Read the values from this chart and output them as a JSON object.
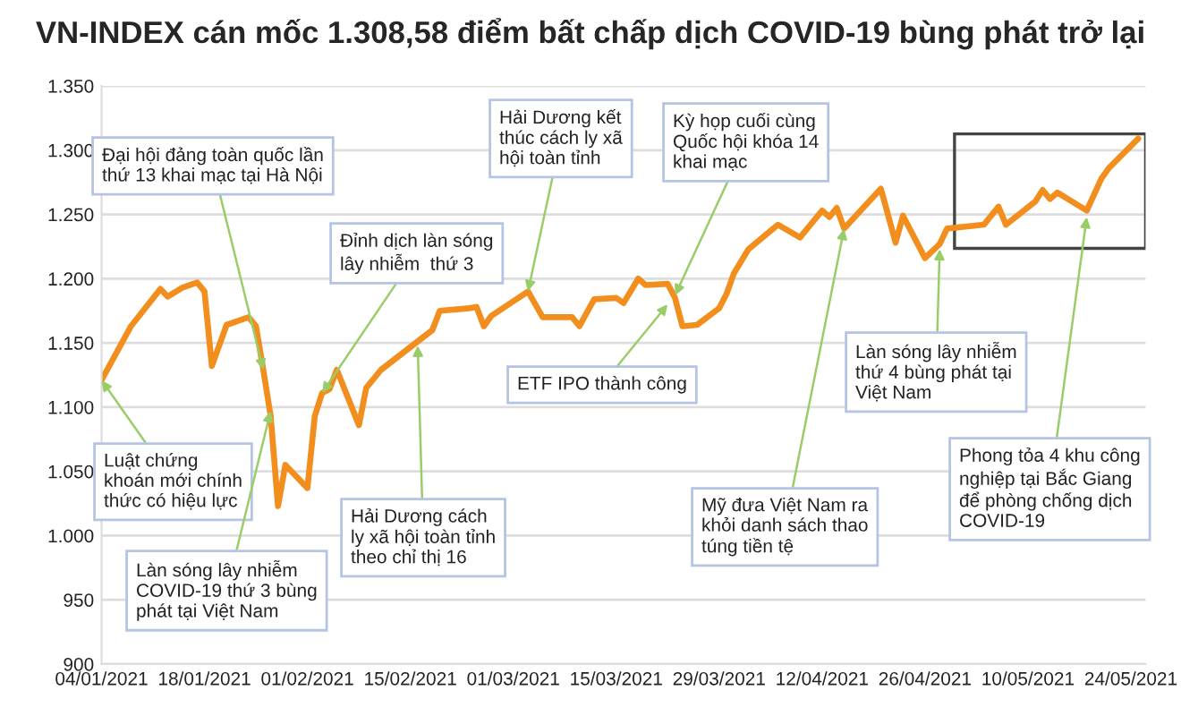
{
  "chart_data": {
    "type": "line",
    "title": "VN-INDEX cán mốc 1.308,58 điểm bất chấp dịch COVID-19 bùng phát trở lại",
    "x": [
      "2021-01-04",
      "2021-01-08",
      "2021-01-12",
      "2021-01-13",
      "2021-01-15",
      "2021-01-17",
      "2021-01-18",
      "2021-01-19",
      "2021-01-21",
      "2021-01-24",
      "2021-01-25",
      "2021-01-26",
      "2021-01-27",
      "2021-01-28",
      "2021-01-29",
      "2021-02-01",
      "2021-02-02",
      "2021-02-03",
      "2021-02-04",
      "2021-02-05",
      "2021-02-08",
      "2021-02-09",
      "2021-02-11",
      "2021-02-18",
      "2021-02-19",
      "2021-02-23",
      "2021-02-24",
      "2021-02-25",
      "2021-02-26",
      "2021-03-03",
      "2021-03-05",
      "2021-03-09",
      "2021-03-10",
      "2021-03-12",
      "2021-03-15",
      "2021-03-16",
      "2021-03-18",
      "2021-03-19",
      "2021-03-22",
      "2021-03-23",
      "2021-03-24",
      "2021-03-26",
      "2021-03-29",
      "2021-03-30",
      "2021-03-31",
      "2021-04-02",
      "2021-04-06",
      "2021-04-09",
      "2021-04-12",
      "2021-04-13",
      "2021-04-14",
      "2021-04-15",
      "2021-04-20",
      "2021-04-22",
      "2021-04-23",
      "2021-04-26",
      "2021-04-28",
      "2021-04-29",
      "2021-05-04",
      "2021-05-06",
      "2021-05-07",
      "2021-05-11",
      "2021-05-12",
      "2021-05-13",
      "2021-05-14",
      "2021-05-18",
      "2021-05-20",
      "2021-05-21",
      "2021-05-25"
    ],
    "series": [
      {
        "color": "#f28e1e",
        "values": [
          1121,
          1163,
          1192,
          1186,
          1193,
          1197,
          1190,
          1132,
          1164,
          1170,
          1163,
          1129,
          1093,
          1023,
          1055,
          1037,
          1093,
          1111,
          1114,
          1129,
          1086,
          1115,
          1129,
          1160,
          1175,
          1177,
          1178,
          1163,
          1171,
          1190,
          1170,
          1170,
          1163,
          1184,
          1185,
          1181,
          1200,
          1195,
          1196,
          1185,
          1163,
          1164,
          1177,
          1188,
          1204,
          1223,
          1242,
          1232,
          1253,
          1248,
          1255,
          1239,
          1270,
          1228,
          1249,
          1216,
          1227,
          1239,
          1242,
          1256,
          1242,
          1260,
          1269,
          1262,
          1267,
          1253,
          1278,
          1286,
          1309
        ]
      }
    ],
    "xlim": [
      "2021-01-04",
      "2021-05-26"
    ],
    "xticks": [
      {
        "value": "2021-01-04",
        "label": "04/01/2021"
      },
      {
        "value": "2021-01-18",
        "label": "18/01/2021"
      },
      {
        "value": "2021-02-01",
        "label": "01/02/2021"
      },
      {
        "value": "2021-02-15",
        "label": "15/02/2021"
      },
      {
        "value": "2021-03-01",
        "label": "01/03/2021"
      },
      {
        "value": "2021-03-15",
        "label": "15/03/2021"
      },
      {
        "value": "2021-03-29",
        "label": "29/03/2021"
      },
      {
        "value": "2021-04-12",
        "label": "12/04/2021"
      },
      {
        "value": "2021-04-26",
        "label": "26/04/2021"
      },
      {
        "value": "2021-05-10",
        "label": "10/05/2021"
      },
      {
        "value": "2021-05-24",
        "label": "24/05/2021"
      }
    ],
    "ylim": [
      900,
      1350
    ],
    "yticks": [
      900,
      {
        "value": 950,
        "label": "950"
      },
      {
        "value": 1000,
        "label": "1.000"
      },
      {
        "value": 1050,
        "label": "1.050"
      },
      {
        "value": 1100,
        "label": "1.100"
      },
      {
        "value": 1150,
        "label": "1.150"
      },
      {
        "value": 1200,
        "label": "1.200"
      },
      {
        "value": 1250,
        "label": "1.250"
      },
      {
        "value": 1300,
        "label": "1.300"
      },
      {
        "value": 1350,
        "label": "1.350"
      }
    ],
    "grid": "y",
    "marker": "none",
    "line_style": "solid",
    "legend": false,
    "annotations": [
      {
        "text": "Đại hội đảng toàn quốc lần\nthứ 13 khai mạc tại Hà Nội",
        "x": "2021-01-26",
        "y": 1129
      },
      {
        "text": "Đỉnh dịch làn sóng\nlây nhiễm  thứ 3",
        "x": "2021-02-03",
        "y": 1111
      },
      {
        "text": "Hải Dương kết\nthúc cách ly xã\nhội toàn tỉnh",
        "x": "2021-03-03",
        "y": 1190
      },
      {
        "text": "Kỳ họp cuối cùng\nQuốc hội khóa 14\nkhai mạc",
        "x": "2021-03-23",
        "y": 1187
      },
      {
        "text": "ETF IPO thành công",
        "x": "2021-03-22",
        "y": 1180
      },
      {
        "text": "Luật chứng\nkhoán mới chính\nthức có hiệu lực",
        "x": "2021-01-04",
        "y": 1121
      },
      {
        "text": "Làn sóng lây nhiễm\nCOVID-19 thứ 3 bùng\nphát tại Việt Nam",
        "x": "2021-01-27",
        "y": 1097
      },
      {
        "text": "Hải Dương cách\nly xã hội toàn tỉnh\ntheo chỉ thị 16",
        "x": "2021-02-16",
        "y": 1148
      },
      {
        "text": "Mỹ đưa Việt Nam ra\nkhỏi danh sách thao\ntúng tiền tệ",
        "x": "2021-04-15",
        "y": 1239
      },
      {
        "text": "Làn sóng lây nhiễm\nthứ 4 bùng phát tại\nViệt Nam",
        "x": "2021-04-28",
        "y": 1223
      },
      {
        "text": "Phong tỏa 4 khu công\nnghiệp tại Bắc Giang\nđể phòng chống dịch\nCOVID-19",
        "x": "2021-05-18",
        "y": 1248
      }
    ]
  }
}
